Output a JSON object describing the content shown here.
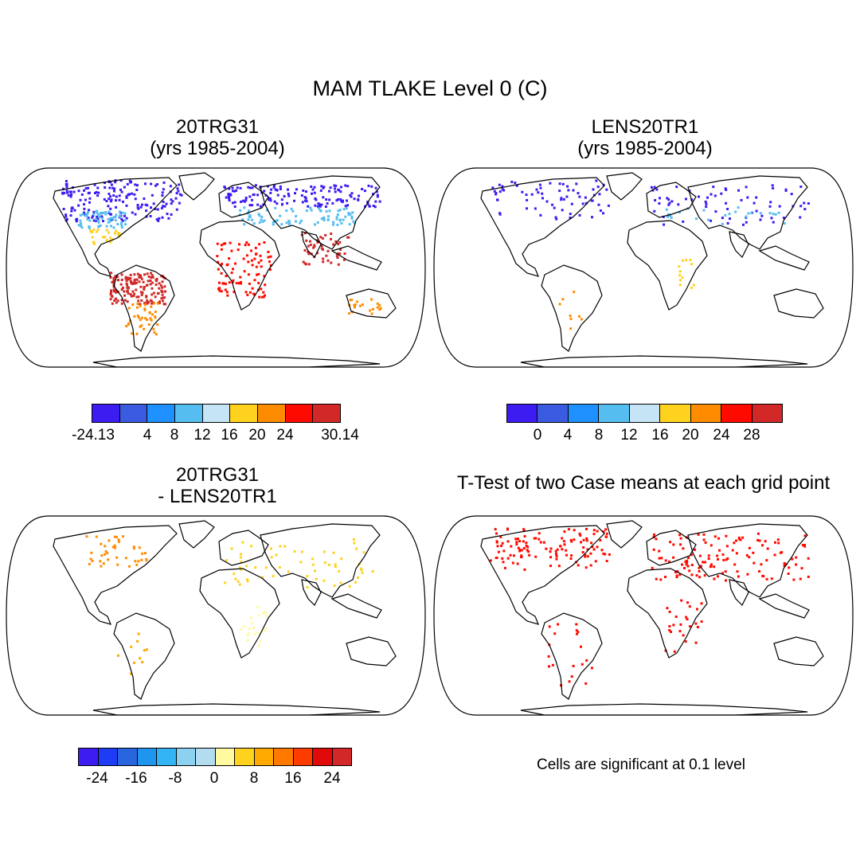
{
  "figure": {
    "title": "MAM TLAKE Level 0 (C)"
  },
  "panels": [
    {
      "id": "top-left",
      "title_line1": "20TRG31",
      "title_line2": "(yrs 1985-2004)"
    },
    {
      "id": "top-right",
      "title_line1": "LENS20TR1",
      "title_line2": "(yrs 1985-2004)"
    },
    {
      "id": "bottom-left",
      "title_line1": "20TRG31",
      "title_line2": "- LENS20TR1"
    },
    {
      "id": "bottom-right",
      "title_line1": "T-Test of two Case means at each grid point",
      "title_line2": ""
    }
  ],
  "colorbars": {
    "top_left": {
      "colors": [
        "#3c1cf0",
        "#3a5ae0",
        "#1e90ff",
        "#56bdf0",
        "#c5e4f5",
        "#ffd21e",
        "#ff8c00",
        "#ff0a00",
        "#d22828"
      ],
      "tick_labels": [
        "-24.13",
        "4",
        "8",
        "12",
        "16",
        "20",
        "24",
        "30.14"
      ]
    },
    "top_right": {
      "colors": [
        "#3c1cf0",
        "#3a5ae0",
        "#1e90ff",
        "#56bdf0",
        "#c5e4f5",
        "#ffd21e",
        "#ff8c00",
        "#ff0a00",
        "#d22828"
      ],
      "tick_labels": [
        "0",
        "4",
        "8",
        "12",
        "16",
        "20",
        "24",
        "28"
      ]
    },
    "bottom_left": {
      "colors": [
        "#3c1cf0",
        "#1e3cf5",
        "#2866e0",
        "#1e96f0",
        "#32b4f5",
        "#8cd2f0",
        "#b4dcf0",
        "#fffaa0",
        "#ffd21e",
        "#ffaa00",
        "#ff7800",
        "#ff3c00",
        "#e10a0a",
        "#d22828"
      ],
      "tick_labels": [
        "-24",
        "-16",
        "-8",
        "0",
        "8",
        "16",
        "24"
      ]
    }
  },
  "note": "Cells are significant at 0.1 level"
}
